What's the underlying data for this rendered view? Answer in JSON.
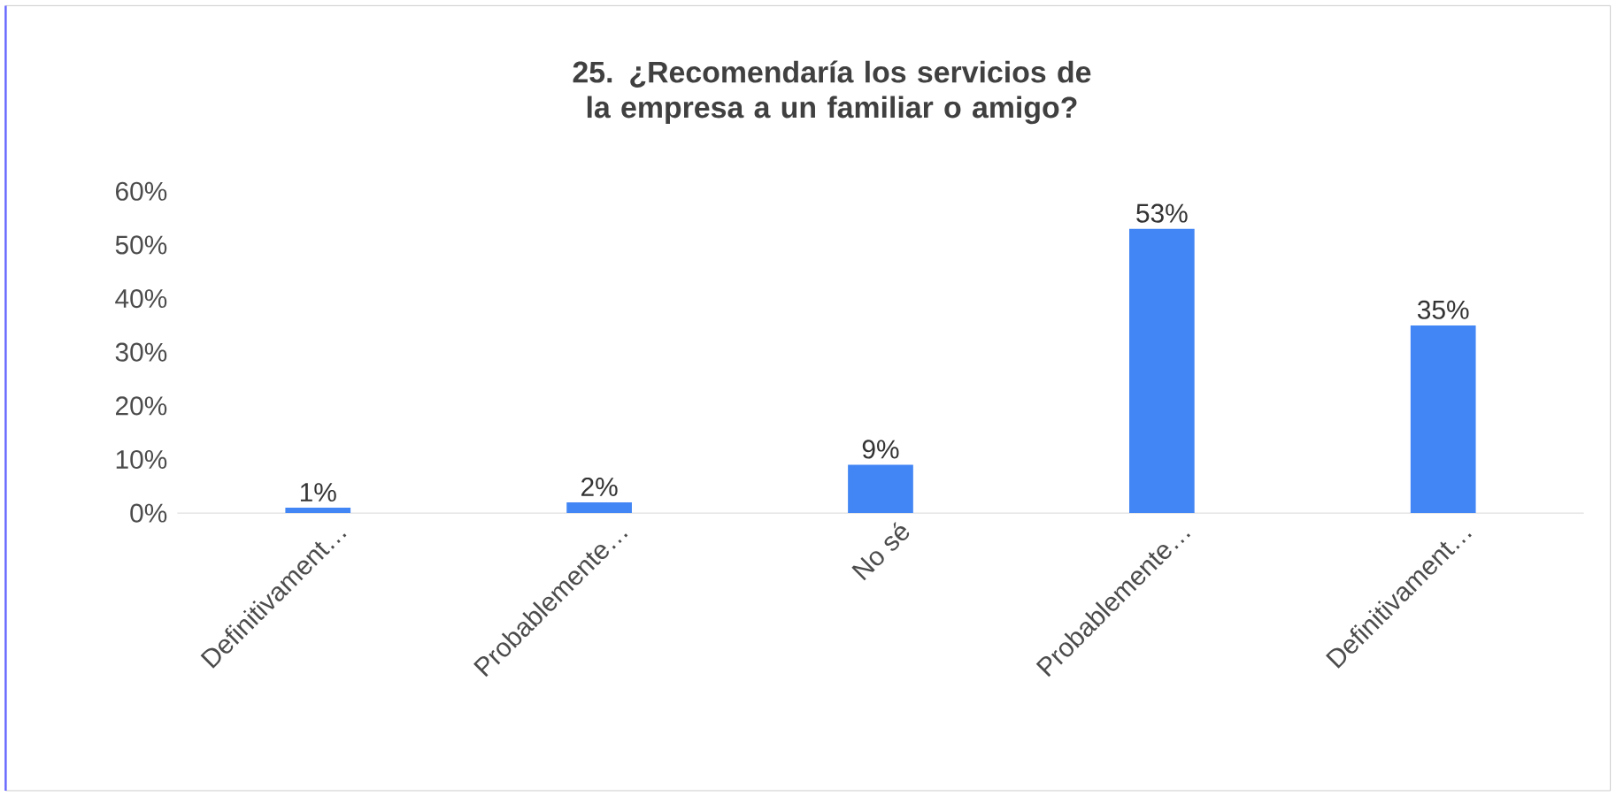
{
  "chart_data": {
    "type": "bar",
    "title": "25. ¿Recomendaría los servicios de la empresa a un familiar  o amigo?",
    "categories": [
      "Definitivament…",
      "Probablemente…",
      "No sé",
      "Probablemente…",
      "Definitivament…"
    ],
    "values": [
      1,
      2,
      9,
      53,
      35
    ],
    "value_labels": [
      "1%",
      "2%",
      "9%",
      "53%",
      "35%"
    ],
    "color": "#4285f4",
    "grid": false,
    "ylim": [
      0,
      60
    ],
    "yticks": [
      {
        "value": 0,
        "label": "0%"
      },
      {
        "value": 10,
        "label": "10%"
      },
      {
        "value": 20,
        "label": "20%"
      },
      {
        "value": 30,
        "label": "30%"
      },
      {
        "value": 40,
        "label": "40%"
      },
      {
        "value": 50,
        "label": "50%"
      },
      {
        "value": 60,
        "label": "60%"
      }
    ],
    "tick_labels": true
  }
}
